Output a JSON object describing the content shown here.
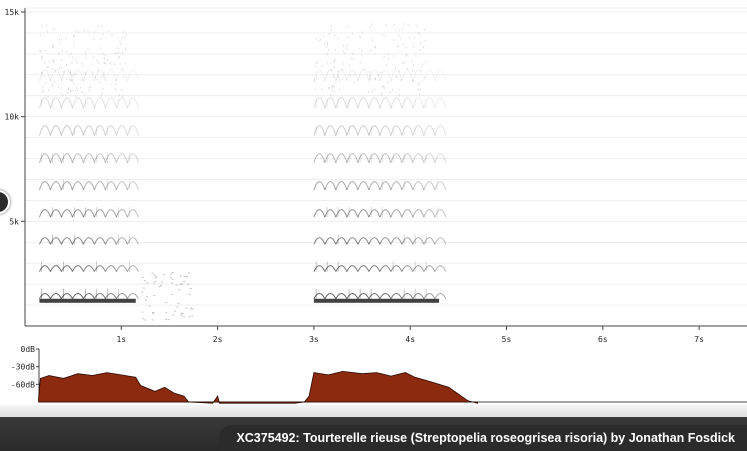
{
  "spectrogram": {
    "y_ticks": [
      {
        "label": "15k",
        "value": 15000
      },
      {
        "label": "10k",
        "value": 10000
      },
      {
        "label": "5k",
        "value": 5000
      }
    ],
    "x_ticks": [
      {
        "label": "1s",
        "value": 1
      },
      {
        "label": "2s",
        "value": 2
      },
      {
        "label": "3s",
        "value": 3
      },
      {
        "label": "4s",
        "value": 4
      },
      {
        "label": "5s",
        "value": 5
      },
      {
        "label": "6s",
        "value": 6
      },
      {
        "label": "7s",
        "value": 7
      }
    ],
    "call_segments_s": [
      [
        0.15,
        1.15
      ],
      [
        3.0,
        4.3
      ]
    ],
    "colors": {
      "ink": "#111111",
      "grid": "#e8e8e8",
      "axis": "#444444"
    }
  },
  "amplitude": {
    "y_ticks": [
      {
        "label": "0dB",
        "value": 0
      },
      {
        "label": "-30dB",
        "value": -30
      },
      {
        "label": "-60dB",
        "value": -60
      }
    ],
    "fill_color": "#8b2a0f",
    "envelope": [
      [
        0.14,
        -85
      ],
      [
        0.16,
        -50
      ],
      [
        0.25,
        -45
      ],
      [
        0.4,
        -50
      ],
      [
        0.55,
        -42
      ],
      [
        0.7,
        -45
      ],
      [
        0.85,
        -40
      ],
      [
        1.0,
        -44
      ],
      [
        1.15,
        -48
      ],
      [
        1.2,
        -62
      ],
      [
        1.35,
        -72
      ],
      [
        1.45,
        -65
      ],
      [
        1.55,
        -75
      ],
      [
        1.65,
        -80
      ],
      [
        1.7,
        -90
      ],
      [
        1.95,
        -92
      ],
      [
        2.0,
        -80
      ],
      [
        2.02,
        -92
      ],
      [
        2.8,
        -92
      ],
      [
        2.9,
        -90
      ],
      [
        2.95,
        -80
      ],
      [
        3.0,
        -40
      ],
      [
        3.15,
        -44
      ],
      [
        3.3,
        -38
      ],
      [
        3.5,
        -42
      ],
      [
        3.65,
        -40
      ],
      [
        3.8,
        -46
      ],
      [
        3.95,
        -40
      ],
      [
        4.05,
        -48
      ],
      [
        4.2,
        -55
      ],
      [
        4.4,
        -65
      ],
      [
        4.6,
        -88
      ],
      [
        4.7,
        -92
      ]
    ]
  },
  "caption": "XC375492: Tourterelle rieuse (Streptopelia roseogrisea risoria) by Jonathan Fosdick"
}
